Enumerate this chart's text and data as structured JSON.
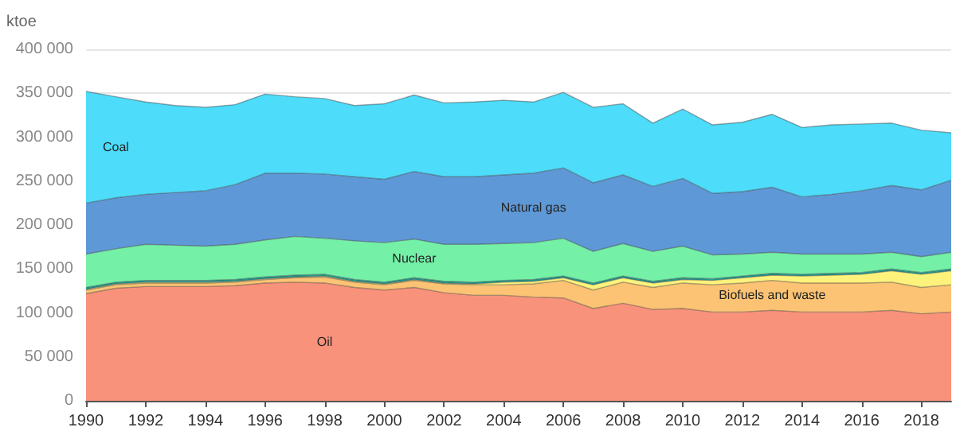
{
  "chart_data": {
    "type": "area",
    "stacked": true,
    "ylabel": "ktoe",
    "legend": false,
    "grid": "y",
    "x": [
      1990,
      1991,
      1992,
      1993,
      1994,
      1995,
      1996,
      1997,
      1998,
      1999,
      2000,
      2001,
      2002,
      2003,
      2004,
      2005,
      2006,
      2007,
      2008,
      2009,
      2010,
      2011,
      2012,
      2013,
      2014,
      2015,
      2016,
      2017,
      2018,
      2019
    ],
    "xlim": [
      1990,
      2019
    ],
    "xticks": [
      1990,
      1992,
      1994,
      1996,
      1998,
      2000,
      2002,
      2004,
      2006,
      2008,
      2010,
      2012,
      2014,
      2016,
      2018
    ],
    "ylim": [
      0,
      400000
    ],
    "yticks": [
      0,
      {
        "value": 50000,
        "label": "50 000"
      },
      {
        "value": 100000,
        "label": "100 000"
      },
      {
        "value": 150000,
        "label": "150 000"
      },
      {
        "value": 200000,
        "label": "200 000"
      },
      {
        "value": 250000,
        "label": "250 000"
      },
      {
        "value": 300000,
        "label": "300 000"
      },
      {
        "value": 350000,
        "label": "350 000"
      },
      {
        "value": 400000,
        "label": "400 000"
      }
    ],
    "series": [
      {
        "name": "Oil",
        "color": "#f9927a",
        "values": [
          122000,
          128000,
          130000,
          130000,
          130000,
          131000,
          134000,
          135000,
          134000,
          129000,
          126000,
          129000,
          123000,
          120000,
          120000,
          118000,
          117000,
          105000,
          111000,
          104000,
          105000,
          101000,
          101000,
          103000,
          101000,
          101000,
          101000,
          103000,
          99000,
          101000
        ]
      },
      {
        "name": "Biofuels and waste",
        "color": "#fbc373",
        "values": [
          4000,
          4000,
          4000,
          4000,
          4000,
          4000,
          4000,
          5000,
          7000,
          6000,
          6000,
          8000,
          10000,
          12000,
          12000,
          15000,
          20000,
          21000,
          24000,
          25000,
          29000,
          31000,
          33000,
          34000,
          33000,
          33000,
          33000,
          32000,
          30000,
          31000
        ]
      },
      {
        "color": "#fdf27c",
        "values": [
          1000,
          1000,
          1000,
          1000,
          1000,
          1000,
          1000,
          1000,
          1000,
          1000,
          1000,
          1000,
          1000,
          1000,
          3000,
          3000,
          3000,
          6000,
          5000,
          5000,
          4000,
          5000,
          6000,
          6000,
          8000,
          9000,
          10000,
          13000,
          15000,
          16000
        ]
      },
      {
        "color": "#1fa59a",
        "values": [
          2000,
          2000,
          2000,
          2000,
          2000,
          2000,
          2000,
          2000,
          2000,
          2000,
          2000,
          2000,
          2000,
          2000,
          2000,
          2000,
          2000,
          2000,
          2000,
          2000,
          2000,
          2000,
          2000,
          2000,
          2000,
          2000,
          2000,
          2000,
          2000,
          2000
        ]
      },
      {
        "name": "Nuclear",
        "color": "#74f0a7",
        "values": [
          38000,
          38000,
          41000,
          40000,
          39000,
          40000,
          42000,
          44000,
          41000,
          44000,
          45000,
          44000,
          42000,
          43000,
          42000,
          42000,
          43000,
          36000,
          37000,
          34000,
          36000,
          27000,
          25000,
          24000,
          23000,
          22000,
          21000,
          19000,
          18000,
          19000
        ]
      },
      {
        "name": "Natural gas",
        "color": "#5f98d6",
        "values": [
          58000,
          58000,
          57000,
          60000,
          63000,
          68000,
          76000,
          72000,
          73000,
          73000,
          72000,
          77000,
          77000,
          77000,
          78000,
          79000,
          80000,
          78000,
          78000,
          74000,
          77000,
          70000,
          71000,
          74000,
          65000,
          68000,
          72000,
          76000,
          76000,
          82000
        ]
      },
      {
        "name": "Coal",
        "color": "#4ddcfa",
        "values": [
          127000,
          115000,
          105000,
          99000,
          95000,
          91000,
          90000,
          87000,
          86000,
          81000,
          86000,
          87000,
          84000,
          85000,
          85000,
          81000,
          86000,
          86000,
          81000,
          72000,
          79000,
          78000,
          79000,
          83000,
          79000,
          79000,
          76000,
          71000,
          68000,
          54000
        ]
      }
    ]
  }
}
